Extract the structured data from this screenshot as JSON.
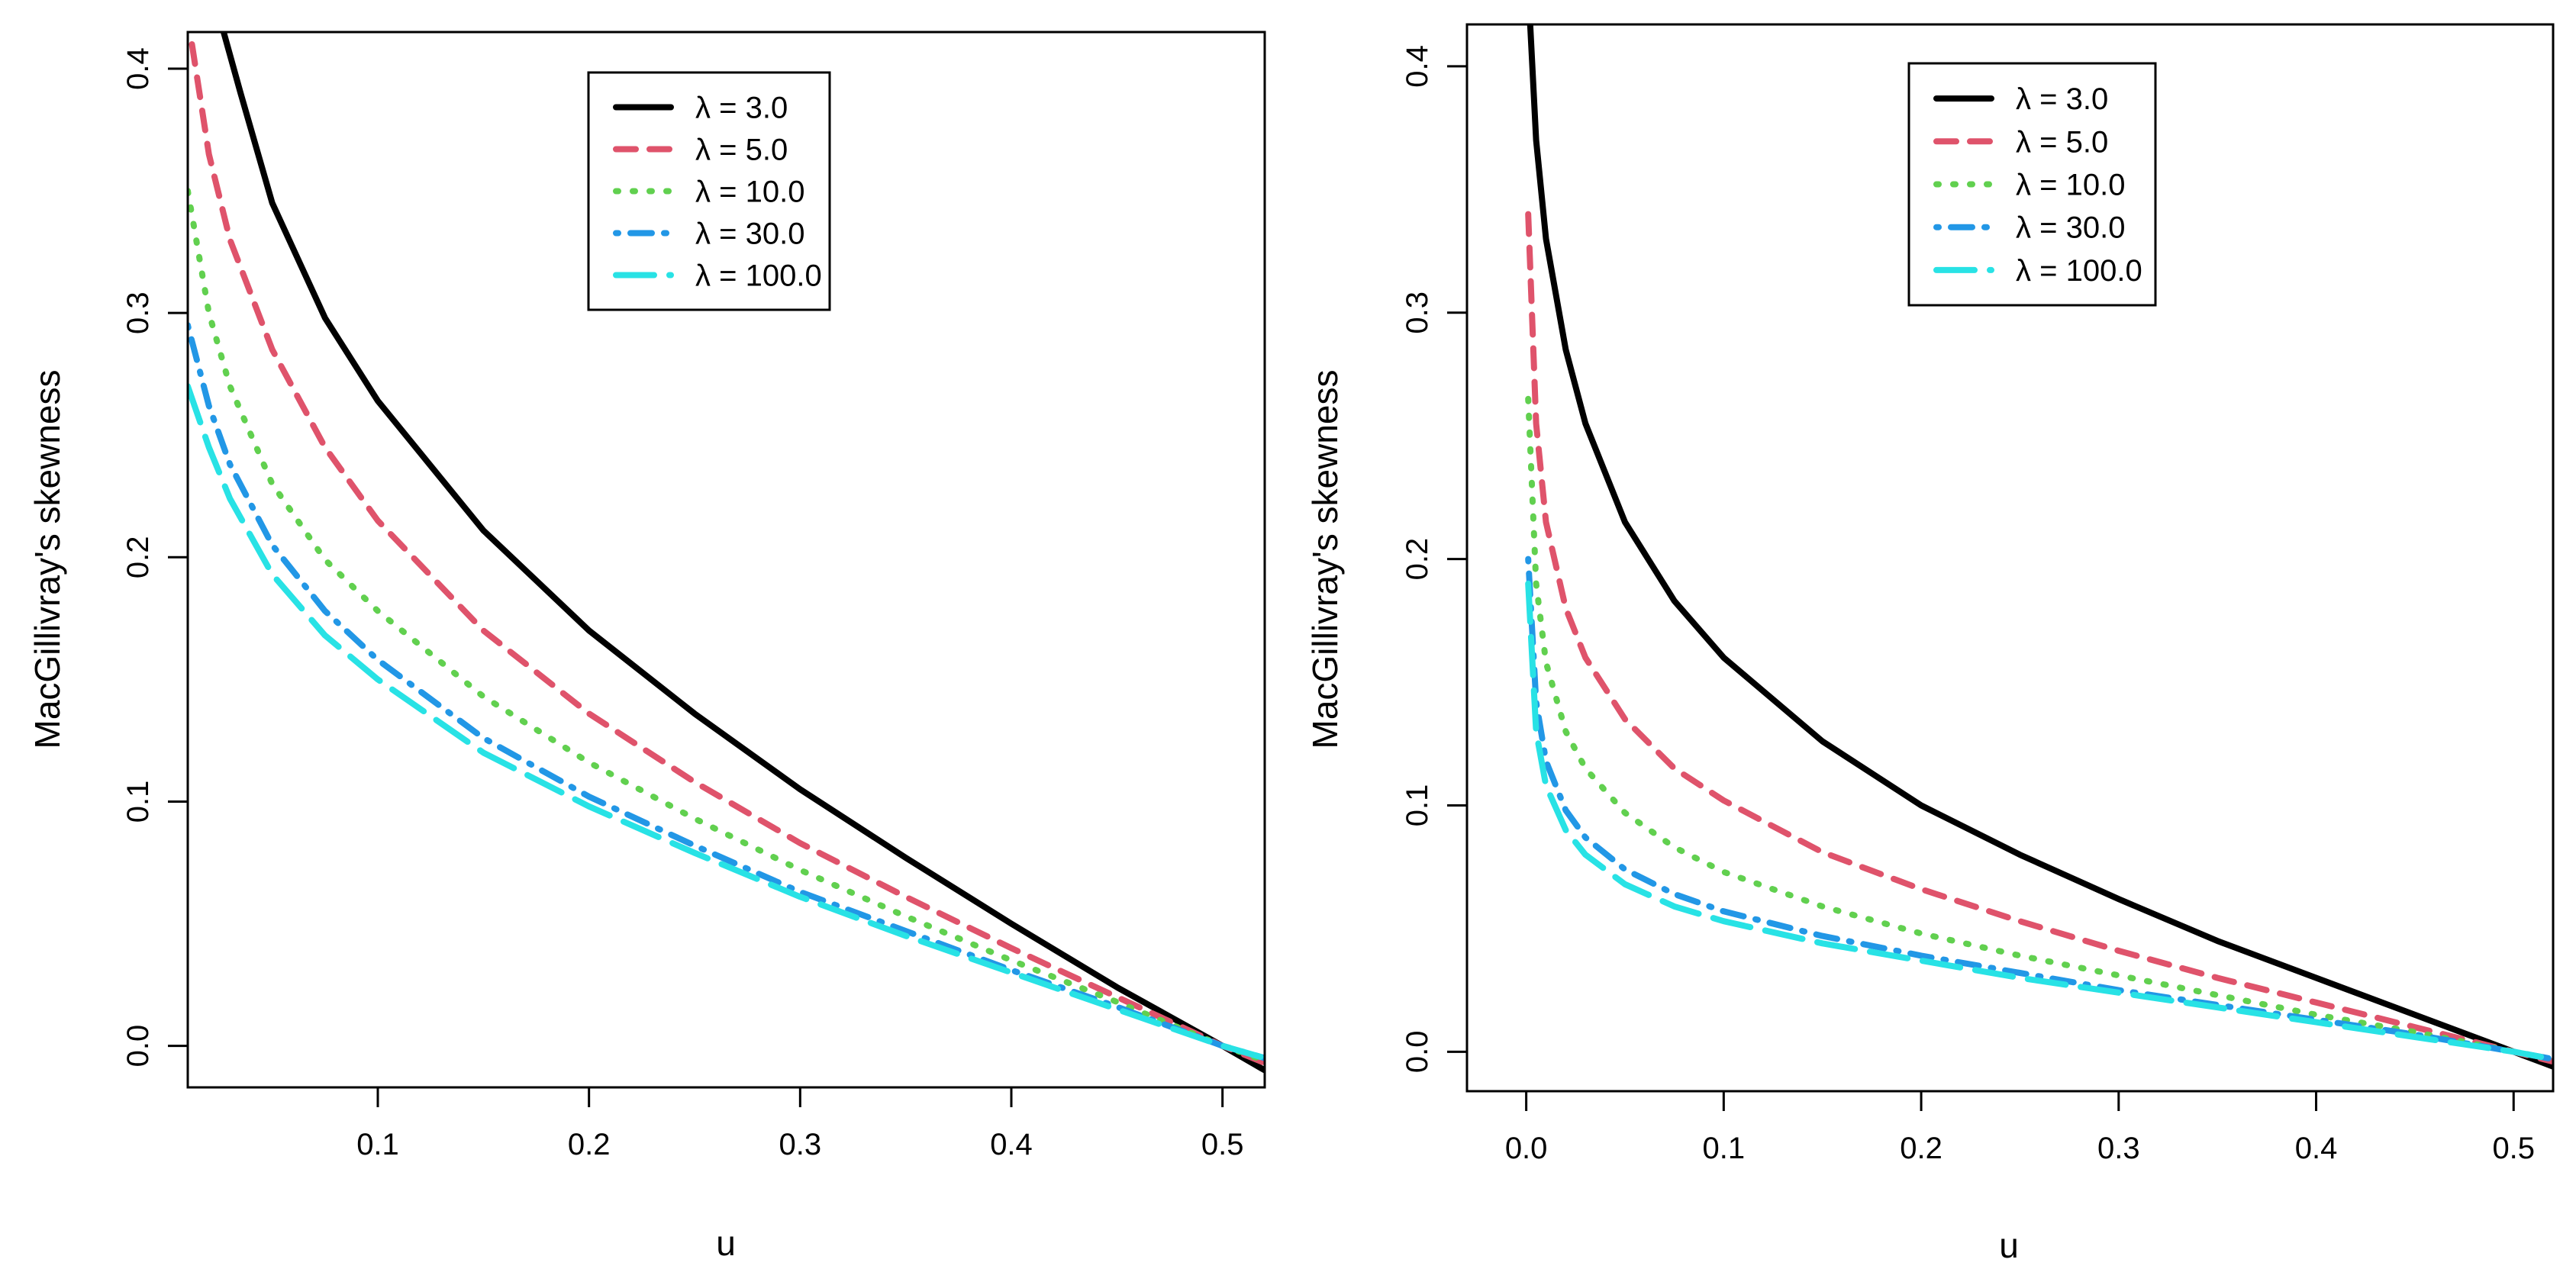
{
  "chart_data": [
    {
      "type": "line",
      "title": "",
      "xlabel": "u",
      "ylabel": "MacGillivray's skewness",
      "xlim": [
        0.01,
        0.52
      ],
      "ylim": [
        -0.017,
        0.415
      ],
      "xticks": [
        0.1,
        0.2,
        0.3,
        0.4,
        0.5
      ],
      "xtick_labels": [
        "0.1",
        "0.2",
        "0.3",
        "0.4",
        "0.5"
      ],
      "yticks": [
        0.0,
        0.1,
        0.2,
        0.3,
        0.4
      ],
      "ytick_labels": [
        "0.0",
        "0.1",
        "0.2",
        "0.3",
        "0.4"
      ],
      "legend_position": "top-center",
      "legend": [
        "λ = 3.0",
        "λ = 5.0",
        "λ = 10.0",
        "λ = 30.0",
        "λ = 100.0"
      ],
      "series": [
        {
          "name": "λ = 3.0",
          "color": "#000000",
          "style": "solid",
          "x": [
            0.027,
            0.035,
            0.05,
            0.075,
            0.1,
            0.15,
            0.2,
            0.25,
            0.3,
            0.35,
            0.4,
            0.45,
            0.5,
            0.52
          ],
          "y": [
            0.415,
            0.39,
            0.345,
            0.298,
            0.264,
            0.211,
            0.17,
            0.136,
            0.105,
            0.077,
            0.05,
            0.024,
            0.0,
            -0.01
          ]
        },
        {
          "name": "λ = 5.0",
          "color": "#DF536B",
          "style": "dashed",
          "x": [
            0.012,
            0.02,
            0.03,
            0.05,
            0.075,
            0.1,
            0.15,
            0.2,
            0.25,
            0.3,
            0.35,
            0.4,
            0.45,
            0.5,
            0.52
          ],
          "y": [
            0.41,
            0.365,
            0.33,
            0.285,
            0.245,
            0.215,
            0.17,
            0.136,
            0.108,
            0.083,
            0.061,
            0.04,
            0.02,
            0.0,
            -0.007
          ]
        },
        {
          "name": "λ = 10.0",
          "color": "#61D04F",
          "style": "dotted",
          "x": [
            0.01,
            0.02,
            0.03,
            0.05,
            0.075,
            0.1,
            0.15,
            0.2,
            0.25,
            0.3,
            0.35,
            0.4,
            0.45,
            0.5,
            0.52
          ],
          "y": [
            0.35,
            0.3,
            0.27,
            0.23,
            0.199,
            0.178,
            0.143,
            0.116,
            0.093,
            0.072,
            0.053,
            0.035,
            0.018,
            0.0,
            -0.006
          ]
        },
        {
          "name": "λ = 30.0",
          "color": "#2297E6",
          "style": "dotdash",
          "x": [
            0.01,
            0.02,
            0.03,
            0.05,
            0.075,
            0.1,
            0.15,
            0.2,
            0.25,
            0.3,
            0.35,
            0.4,
            0.45,
            0.5,
            0.52
          ],
          "y": [
            0.295,
            0.262,
            0.238,
            0.205,
            0.178,
            0.158,
            0.126,
            0.102,
            0.082,
            0.063,
            0.047,
            0.031,
            0.016,
            0.0,
            -0.005
          ]
        },
        {
          "name": "λ = 100.0",
          "color": "#28E2E5",
          "style": "longdash",
          "x": [
            0.01,
            0.02,
            0.03,
            0.05,
            0.075,
            0.1,
            0.15,
            0.2,
            0.25,
            0.3,
            0.35,
            0.4,
            0.45,
            0.5,
            0.52
          ],
          "y": [
            0.27,
            0.245,
            0.224,
            0.193,
            0.168,
            0.15,
            0.12,
            0.098,
            0.079,
            0.061,
            0.045,
            0.03,
            0.015,
            0.0,
            -0.005
          ]
        }
      ]
    },
    {
      "type": "line",
      "title": "",
      "xlabel": "u",
      "ylabel": "MacGillivray's skewness",
      "xlim": [
        -0.03,
        0.52
      ],
      "ylim": [
        -0.016,
        0.417
      ],
      "xticks": [
        0.0,
        0.1,
        0.2,
        0.3,
        0.4,
        0.5
      ],
      "xtick_labels": [
        "0.0",
        "0.1",
        "0.2",
        "0.3",
        "0.4",
        "0.5"
      ],
      "yticks": [
        0.0,
        0.1,
        0.2,
        0.3,
        0.4
      ],
      "ytick_labels": [
        "0.0",
        "0.1",
        "0.2",
        "0.3",
        "0.4"
      ],
      "legend_position": "top-center",
      "legend": [
        "λ = 3.0",
        "λ = 5.0",
        "λ = 10.0",
        "λ = 30.0",
        "λ = 100.0"
      ],
      "series": [
        {
          "name": "λ = 3.0",
          "color": "#000000",
          "style": "solid",
          "x": [
            0.002,
            0.005,
            0.01,
            0.02,
            0.03,
            0.05,
            0.075,
            0.1,
            0.15,
            0.2,
            0.25,
            0.3,
            0.35,
            0.4,
            0.45,
            0.5,
            0.52
          ],
          "y": [
            0.417,
            0.37,
            0.33,
            0.285,
            0.255,
            0.215,
            0.183,
            0.16,
            0.126,
            0.1,
            0.08,
            0.062,
            0.045,
            0.03,
            0.015,
            0.0,
            -0.006
          ]
        },
        {
          "name": "λ = 5.0",
          "color": "#DF536B",
          "style": "dashed",
          "x": [
            0.001,
            0.005,
            0.01,
            0.02,
            0.03,
            0.05,
            0.075,
            0.1,
            0.15,
            0.2,
            0.25,
            0.3,
            0.35,
            0.4,
            0.45,
            0.5,
            0.52
          ],
          "y": [
            0.34,
            0.255,
            0.215,
            0.18,
            0.16,
            0.135,
            0.115,
            0.102,
            0.081,
            0.066,
            0.053,
            0.041,
            0.03,
            0.02,
            0.01,
            0.0,
            -0.004
          ]
        },
        {
          "name": "λ = 10.0",
          "color": "#61D04F",
          "style": "dotted",
          "x": [
            0.001,
            0.005,
            0.01,
            0.02,
            0.03,
            0.05,
            0.075,
            0.1,
            0.15,
            0.2,
            0.25,
            0.3,
            0.35,
            0.4,
            0.45,
            0.5,
            0.52
          ],
          "y": [
            0.265,
            0.19,
            0.158,
            0.13,
            0.115,
            0.097,
            0.083,
            0.073,
            0.059,
            0.048,
            0.039,
            0.031,
            0.023,
            0.015,
            0.008,
            0.0,
            -0.003
          ]
        },
        {
          "name": "λ = 30.0",
          "color": "#2297E6",
          "style": "dotdash",
          "x": [
            0.001,
            0.005,
            0.01,
            0.02,
            0.03,
            0.05,
            0.075,
            0.1,
            0.15,
            0.2,
            0.25,
            0.3,
            0.35,
            0.4,
            0.45,
            0.5,
            0.52
          ],
          "y": [
            0.2,
            0.142,
            0.118,
            0.098,
            0.087,
            0.074,
            0.064,
            0.057,
            0.047,
            0.039,
            0.032,
            0.025,
            0.019,
            0.013,
            0.007,
            0.0,
            -0.003
          ]
        },
        {
          "name": "λ = 100.0",
          "color": "#28E2E5",
          "style": "longdash",
          "x": [
            0.001,
            0.005,
            0.01,
            0.02,
            0.03,
            0.05,
            0.075,
            0.1,
            0.15,
            0.2,
            0.25,
            0.3,
            0.35,
            0.4,
            0.45,
            0.5,
            0.52
          ],
          "y": [
            0.19,
            0.13,
            0.108,
            0.09,
            0.08,
            0.068,
            0.059,
            0.053,
            0.044,
            0.037,
            0.03,
            0.024,
            0.018,
            0.012,
            0.006,
            0.0,
            -0.003
          ]
        }
      ]
    }
  ]
}
